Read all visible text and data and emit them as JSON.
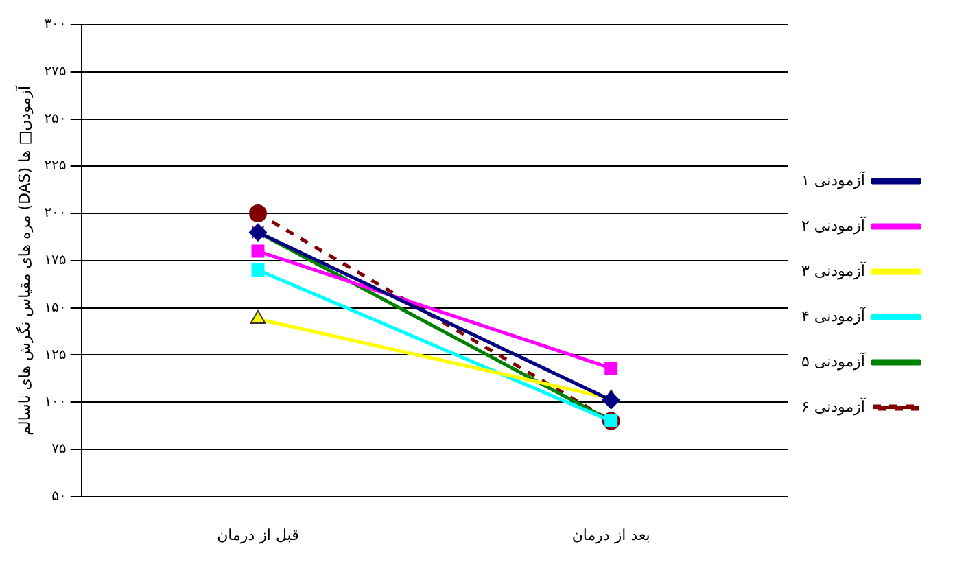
{
  "chart_data": {
    "type": "line",
    "ylabel": "مره های مقیاس نگرش های ناسالم (DAS) آزمودن□ ها",
    "categories": [
      "قبل از درمان",
      "بعد از درمان"
    ],
    "series": [
      {
        "name": "آزمودنی ۱",
        "color": "#000080",
        "marker": "diamond",
        "values": [
          190,
          101
        ]
      },
      {
        "name": "آزمودنی ۲",
        "color": "#ff00ff",
        "marker": "square",
        "values": [
          180,
          118
        ]
      },
      {
        "name": "آزمودنی ۳",
        "color": "#ffff00",
        "marker": "triangle",
        "values": [
          144,
          102
        ]
      },
      {
        "name": "آزمودنی ۴",
        "color": "#00ffff",
        "marker": "square",
        "values": [
          170,
          90
        ]
      },
      {
        "name": "آزمودنی ۵",
        "color": "#008000",
        "marker": "cross",
        "values": [
          190,
          90
        ]
      },
      {
        "name": "آزمودنی ۶",
        "color": "#800000",
        "marker": "circle",
        "line_style": "dashed",
        "values": [
          200,
          90
        ]
      }
    ],
    "ylim": [
      50,
      300
    ],
    "yticks": [
      {
        "value": 50,
        "label": "۵۰"
      },
      {
        "value": 75,
        "label": "۷۵"
      },
      {
        "value": 100,
        "label": "۱۰۰"
      },
      {
        "value": 125,
        "label": "۱۲۵"
      },
      {
        "value": 150,
        "label": "۱۵۰"
      },
      {
        "value": 175,
        "label": "۱۷۵"
      },
      {
        "value": 200,
        "label": "۲۰۰"
      },
      {
        "value": 225,
        "label": "۲۲۵"
      },
      {
        "value": 250,
        "label": "۲۵۰"
      },
      {
        "value": 275,
        "label": "۲۷۵"
      },
      {
        "value": 300,
        "label": "۳۰۰"
      }
    ],
    "grid": "y",
    "legend": "right"
  }
}
